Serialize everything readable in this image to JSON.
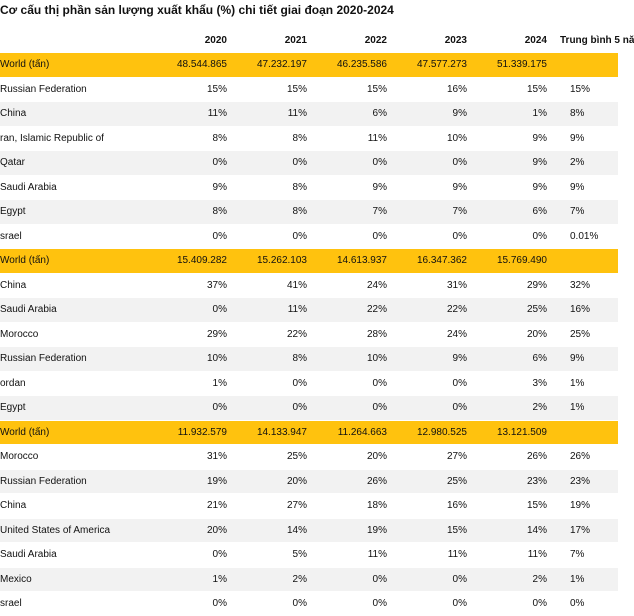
{
  "title": "Cơ cấu thị phần sản lượng xuất khẩu (%) chi tiết giai đoạn 2020-2024",
  "columns": [
    "",
    "2020",
    "2021",
    "2022",
    "2023",
    "2024",
    "Trung bình 5 nă"
  ],
  "rows": [
    {
      "type": "world",
      "cells": [
        "World (tấn)",
        "48.544.865",
        "47.232.197",
        "46.235.586",
        "47.577.273",
        "51.339.175",
        ""
      ]
    },
    {
      "type": "data",
      "cells": [
        "Russian Federation",
        "15%",
        "15%",
        "15%",
        "16%",
        "15%",
        "15%"
      ]
    },
    {
      "type": "data",
      "cells": [
        "China",
        "11%",
        "11%",
        "6%",
        "9%",
        "1%",
        "8%"
      ]
    },
    {
      "type": "data",
      "cells": [
        "ran, Islamic Republic of",
        "8%",
        "8%",
        "11%",
        "10%",
        "9%",
        "9%"
      ]
    },
    {
      "type": "data",
      "cells": [
        "Qatar",
        "0%",
        "0%",
        "0%",
        "0%",
        "9%",
        "2%"
      ]
    },
    {
      "type": "data",
      "cells": [
        "Saudi Arabia",
        "9%",
        "8%",
        "9%",
        "9%",
        "9%",
        "9%"
      ]
    },
    {
      "type": "data",
      "cells": [
        "Egypt",
        "8%",
        "8%",
        "7%",
        "7%",
        "6%",
        "7%"
      ]
    },
    {
      "type": "data",
      "cells": [
        "srael",
        "0%",
        "0%",
        "0%",
        "0%",
        "0%",
        "0.01%"
      ]
    },
    {
      "type": "world",
      "cells": [
        "World (tấn)",
        "15.409.282",
        "15.262.103",
        "14.613.937",
        "16.347.362",
        "15.769.490",
        ""
      ]
    },
    {
      "type": "data",
      "cells": [
        "China",
        "37%",
        "41%",
        "24%",
        "31%",
        "29%",
        "32%"
      ]
    },
    {
      "type": "data",
      "cells": [
        "Saudi Arabia",
        "0%",
        "11%",
        "22%",
        "22%",
        "25%",
        "16%"
      ]
    },
    {
      "type": "data",
      "cells": [
        "Morocco",
        "29%",
        "22%",
        "28%",
        "24%",
        "20%",
        "25%"
      ]
    },
    {
      "type": "data",
      "cells": [
        "Russian Federation",
        "10%",
        "8%",
        "10%",
        "9%",
        "6%",
        "9%"
      ]
    },
    {
      "type": "data",
      "cells": [
        "ordan",
        "1%",
        "0%",
        "0%",
        "0%",
        "3%",
        "1%"
      ]
    },
    {
      "type": "data",
      "cells": [
        "Egypt",
        "0%",
        "0%",
        "0%",
        "0%",
        "2%",
        "1%"
      ]
    },
    {
      "type": "world",
      "cells": [
        "World (tấn)",
        "11.932.579",
        "14.133.947",
        "11.264.663",
        "12.980.525",
        "13.121.509",
        ""
      ]
    },
    {
      "type": "data",
      "cells": [
        "Morocco",
        "31%",
        "25%",
        "20%",
        "27%",
        "26%",
        "26%"
      ]
    },
    {
      "type": "data",
      "cells": [
        "Russian Federation",
        "19%",
        "20%",
        "26%",
        "25%",
        "23%",
        "23%"
      ]
    },
    {
      "type": "data",
      "cells": [
        "China",
        "21%",
        "27%",
        "18%",
        "16%",
        "15%",
        "19%"
      ]
    },
    {
      "type": "data",
      "cells": [
        "United States of America",
        "20%",
        "14%",
        "19%",
        "15%",
        "14%",
        "17%"
      ]
    },
    {
      "type": "data",
      "cells": [
        "Saudi Arabia",
        "0%",
        "5%",
        "11%",
        "11%",
        "11%",
        "7%"
      ]
    },
    {
      "type": "data",
      "cells": [
        "Mexico",
        "1%",
        "2%",
        "0%",
        "0%",
        "2%",
        "1%"
      ]
    },
    {
      "type": "data",
      "cells": [
        "srael",
        "0%",
        "0%",
        "0%",
        "0%",
        "0%",
        "0%"
      ]
    }
  ]
}
